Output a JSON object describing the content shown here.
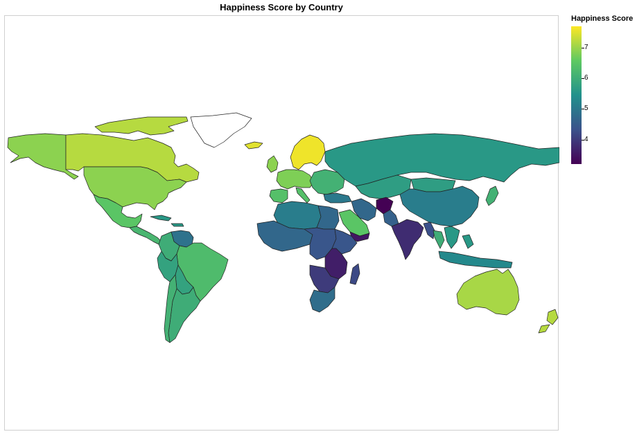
{
  "title": "Happiness Score by Country",
  "legend": {
    "title": "Happiness Score",
    "ticks": [
      "7",
      "6",
      "5",
      "4"
    ],
    "scale_min": 3.2,
    "scale_max": 7.7,
    "colormap": [
      "#440154",
      "#3b528b",
      "#21918c",
      "#5ec962",
      "#fde725"
    ]
  },
  "regions": [
    {
      "id": "alaska",
      "score": 6.9
    },
    {
      "id": "canada",
      "score": 7.2
    },
    {
      "id": "canada-arctic",
      "score": 7.2
    },
    {
      "id": "greenland",
      "score": null
    },
    {
      "id": "usa",
      "score": 6.9
    },
    {
      "id": "mexico",
      "score": 6.5
    },
    {
      "id": "central-america",
      "score": 6.2
    },
    {
      "id": "caribbean",
      "score": 5.6
    },
    {
      "id": "venezuela",
      "score": 4.9
    },
    {
      "id": "colombia",
      "score": 6.0
    },
    {
      "id": "brazil",
      "score": 6.3
    },
    {
      "id": "peru",
      "score": 5.8
    },
    {
      "id": "bolivia",
      "score": 5.8
    },
    {
      "id": "argentina",
      "score": 6.0
    },
    {
      "id": "chile",
      "score": 6.1
    },
    {
      "id": "iceland",
      "score": 7.5
    },
    {
      "id": "uk",
      "score": 6.9
    },
    {
      "id": "scandinavia",
      "score": 7.6
    },
    {
      "id": "western-europe",
      "score": 6.8
    },
    {
      "id": "spain",
      "score": 6.4
    },
    {
      "id": "italy",
      "score": 6.4
    },
    {
      "id": "eastern-europe",
      "score": 6.1
    },
    {
      "id": "russia",
      "score": 5.6
    },
    {
      "id": "turkey",
      "score": 5.0
    },
    {
      "id": "north-africa",
      "score": 5.1
    },
    {
      "id": "libya-egypt",
      "score": 4.7
    },
    {
      "id": "west-africa",
      "score": 4.7
    },
    {
      "id": "central-africa",
      "score": 4.4
    },
    {
      "id": "horn-of-africa",
      "score": 4.4
    },
    {
      "id": "east-africa",
      "score": 3.6
    },
    {
      "id": "southern-africa",
      "score": 4.0
    },
    {
      "id": "south-africa",
      "score": 4.8
    },
    {
      "id": "madagascar",
      "score": 4.2
    },
    {
      "id": "saudi-arabia",
      "score": 6.5
    },
    {
      "id": "yemen",
      "score": 3.5
    },
    {
      "id": "iran",
      "score": 4.7
    },
    {
      "id": "afghanistan",
      "score": 3.2
    },
    {
      "id": "pakistan",
      "score": 4.6
    },
    {
      "id": "india",
      "score": 3.8
    },
    {
      "id": "central-asia",
      "score": 5.7
    },
    {
      "id": "mongolia",
      "score": 5.7
    },
    {
      "id": "china",
      "score": 5.1
    },
    {
      "id": "myanmar",
      "score": 4.3
    },
    {
      "id": "thailand",
      "score": 6.0
    },
    {
      "id": "southeast-asia",
      "score": 5.6
    },
    {
      "id": "japan",
      "score": 6.1
    },
    {
      "id": "indonesia",
      "score": 5.3
    },
    {
      "id": "australia",
      "score": 7.1
    },
    {
      "id": "new-zealand",
      "score": 7.2
    }
  ]
}
